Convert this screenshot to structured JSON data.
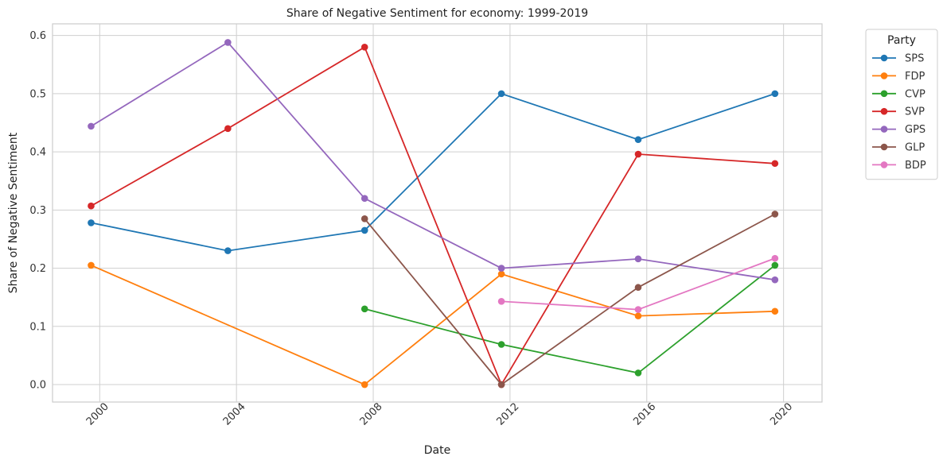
{
  "chart_data": {
    "type": "line",
    "title": "Share of Negative Sentiment for economy: 1999-2019",
    "xlabel": "Date",
    "ylabel": "Share of Negative Sentiment",
    "x_axis_kind": "date",
    "xlim": [
      "1998-08-15",
      "2021-02-15"
    ],
    "ylim": [
      -0.03,
      0.62
    ],
    "x_ticks": [
      "2000",
      "2004",
      "2008",
      "2012",
      "2016",
      "2020"
    ],
    "y_ticks": [
      "0.0",
      "0.1",
      "0.2",
      "0.3",
      "0.4",
      "0.5",
      "0.6"
    ],
    "grid": true,
    "legend": {
      "title": "Party",
      "placement": "outside-right"
    },
    "series": [
      {
        "name": "SPS",
        "color": "#1f77b4",
        "points": [
          [
            "1999-10-01",
            0.278
          ],
          [
            "2003-10-01",
            0.23
          ],
          [
            "2007-10-01",
            0.265
          ],
          [
            "2011-10-01",
            0.5
          ],
          [
            "2015-10-01",
            0.421
          ],
          [
            "2019-10-01",
            0.5
          ]
        ]
      },
      {
        "name": "FDP",
        "color": "#ff7f0e",
        "points": [
          [
            "1999-10-01",
            0.205
          ],
          [
            "2007-10-01",
            0.0
          ],
          [
            "2011-10-01",
            0.19
          ],
          [
            "2015-10-01",
            0.118
          ],
          [
            "2019-10-01",
            0.126
          ]
        ]
      },
      {
        "name": "CVP",
        "color": "#2ca02c",
        "points": [
          [
            "2007-10-01",
            0.13
          ],
          [
            "2011-10-01",
            0.069
          ],
          [
            "2015-10-01",
            0.02
          ],
          [
            "2019-10-01",
            0.205
          ]
        ]
      },
      {
        "name": "SVP",
        "color": "#d62728",
        "points": [
          [
            "1999-10-01",
            0.307
          ],
          [
            "2003-10-01",
            0.44
          ],
          [
            "2007-10-01",
            0.58
          ],
          [
            "2011-10-01",
            0.0
          ],
          [
            "2015-10-01",
            0.396
          ],
          [
            "2019-10-01",
            0.38
          ]
        ]
      },
      {
        "name": "GPS",
        "color": "#9467bd",
        "points": [
          [
            "1999-10-01",
            0.444
          ],
          [
            "2003-10-01",
            0.588
          ],
          [
            "2007-10-01",
            0.32
          ],
          [
            "2011-10-01",
            0.2
          ],
          [
            "2015-10-01",
            0.216
          ],
          [
            "2019-10-01",
            0.18
          ]
        ]
      },
      {
        "name": "GLP",
        "color": "#8c564b",
        "points": [
          [
            "2007-10-01",
            0.285
          ],
          [
            "2011-10-01",
            0.0
          ],
          [
            "2015-10-01",
            0.167
          ],
          [
            "2019-10-01",
            0.293
          ]
        ]
      },
      {
        "name": "BDP",
        "color": "#e377c2",
        "points": [
          [
            "2011-10-01",
            0.143
          ],
          [
            "2015-10-01",
            0.129
          ],
          [
            "2019-10-01",
            0.217
          ]
        ]
      }
    ]
  }
}
